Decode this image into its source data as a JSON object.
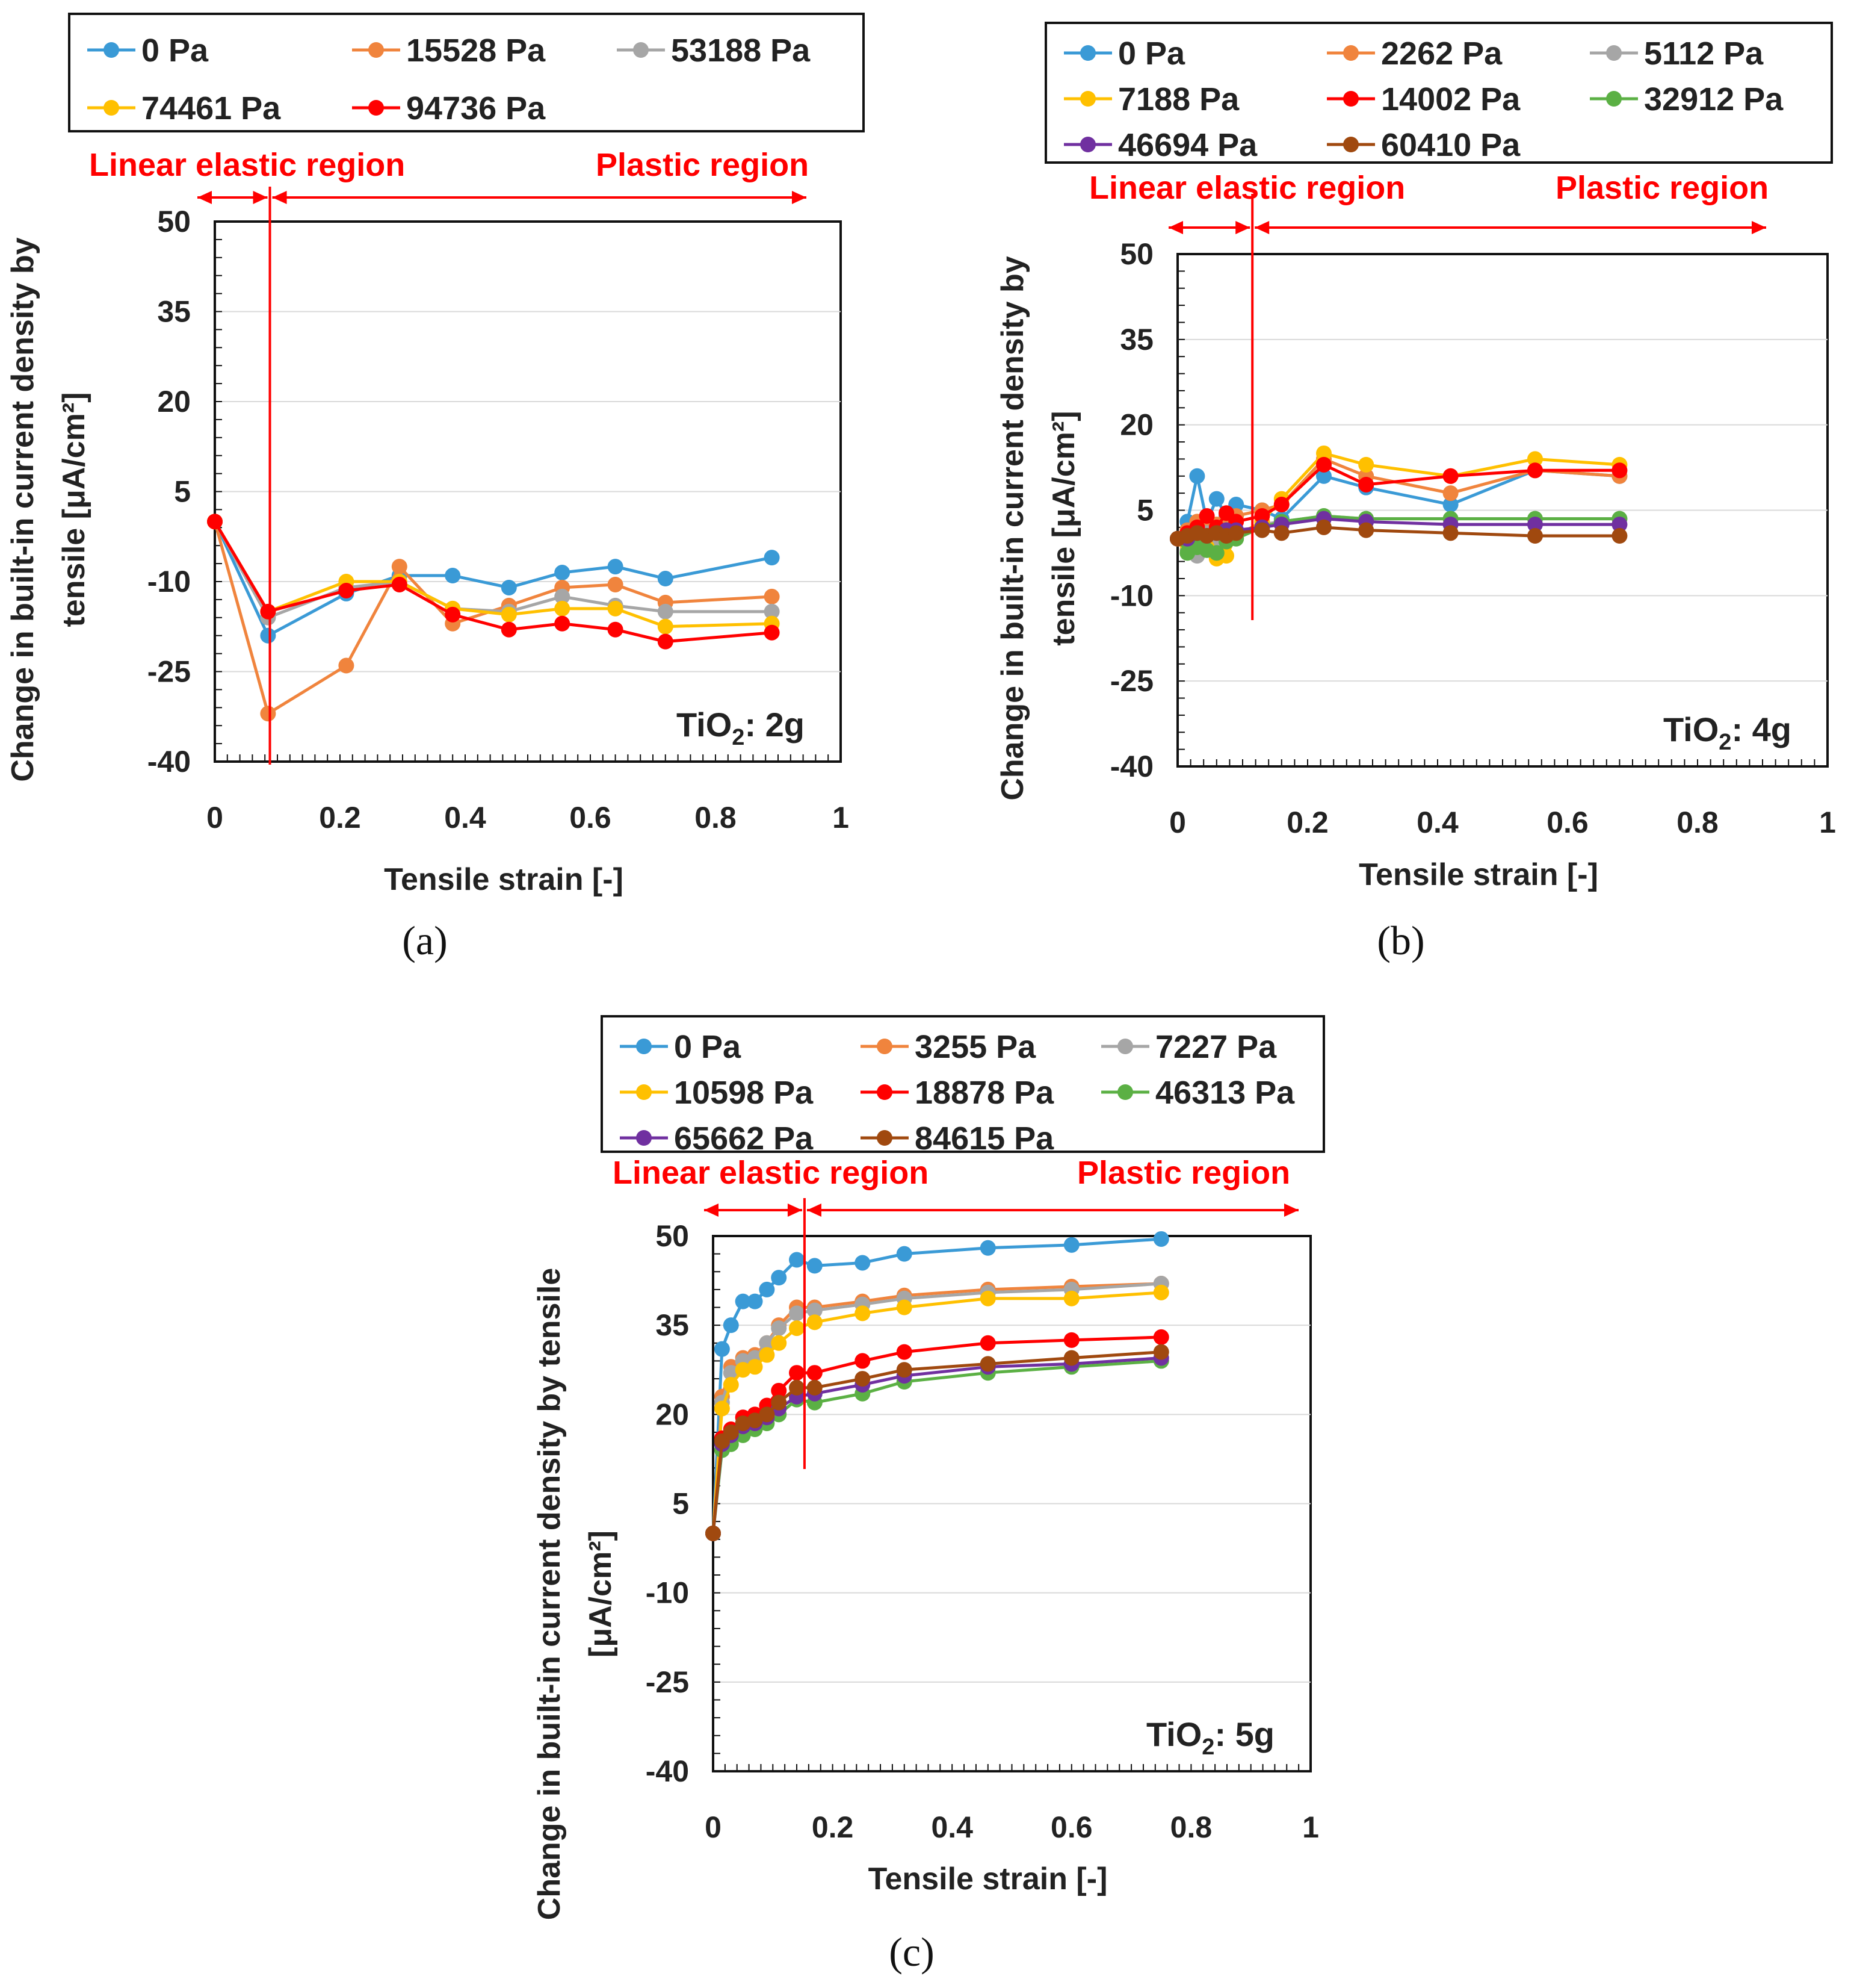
{
  "chart_data": [
    {
      "type": "line",
      "panel_label": "(a)",
      "annotation": {
        "prefix": "TiO",
        "sub": "2",
        "suffix": ": 2g"
      },
      "xlabel": "Tensile strain    [-]",
      "ylabel": [
        "Change in built-in current density by",
        "tensile  [μA/cm²]"
      ],
      "xlim": [
        0,
        1
      ],
      "ylim": [
        -40,
        50
      ],
      "xticks": [
        0,
        0.2,
        0.4,
        0.6,
        0.8,
        1
      ],
      "xtick_labels": [
        "0",
        "0.2",
        "0.4",
        "0.6",
        "0.8",
        "1"
      ],
      "yticks": [
        -40,
        -25,
        -10,
        5,
        20,
        35,
        50
      ],
      "ytick_labels": [
        "-40",
        "-25",
        "-10",
        "5",
        "20",
        "35",
        "50"
      ],
      "grid": true,
      "legend_columns": 3,
      "regions": {
        "elastic_label": "Linear elastic region",
        "plastic_label": "Plastic region",
        "boundary_strain": 0.088
      },
      "series": [
        {
          "name": "0 Pa",
          "color": "#3a9ad6",
          "x": [
            0,
            0.085,
            0.21,
            0.295,
            0.38,
            0.47,
            0.555,
            0.64,
            0.72,
            0.89
          ],
          "y": [
            0,
            -19,
            -12,
            -9,
            -9,
            -11,
            -8.5,
            -7.5,
            -9.5,
            -6
          ]
        },
        {
          "name": "15528 Pa",
          "color": "#f0843d",
          "x": [
            0,
            0.085,
            0.21,
            0.295,
            0.38,
            0.47,
            0.555,
            0.64,
            0.72,
            0.89
          ],
          "y": [
            0,
            -32,
            -24,
            -7.5,
            -17,
            -14,
            -11,
            -10.5,
            -13.5,
            -12.5
          ]
        },
        {
          "name": "53188 Pa",
          "color": "#a6a6a6",
          "x": [
            0,
            0.085,
            0.21,
            0.295,
            0.38,
            0.47,
            0.555,
            0.64,
            0.72,
            0.89
          ],
          "y": [
            0,
            -16,
            -11,
            -10,
            -14.5,
            -15,
            -12.5,
            -14,
            -15,
            -15
          ]
        },
        {
          "name": "74461 Pa",
          "color": "#ffc000",
          "x": [
            0,
            0.085,
            0.21,
            0.295,
            0.38,
            0.47,
            0.555,
            0.64,
            0.72,
            0.89
          ],
          "y": [
            0,
            -15,
            -10,
            -10,
            -14.5,
            -15.5,
            -14.5,
            -14.5,
            -17.5,
            -17
          ]
        },
        {
          "name": "94736 Pa",
          "color": "#ff0000",
          "x": [
            0,
            0.085,
            0.21,
            0.295,
            0.38,
            0.47,
            0.555,
            0.64,
            0.72,
            0.89
          ],
          "y": [
            0,
            -15,
            -11.5,
            -10.5,
            -15.5,
            -18,
            -17,
            -18,
            -20,
            -18.5
          ]
        }
      ]
    },
    {
      "type": "line",
      "panel_label": "(b)",
      "annotation": {
        "prefix": "TiO",
        "sub": "2",
        "suffix": ": 4g"
      },
      "xlabel": "Tensile strain    [-]",
      "ylabel": [
        "Change in built-in current density by",
        "tensile  [μA/cm²]"
      ],
      "xlim": [
        0,
        1
      ],
      "ylim": [
        -40,
        50
      ],
      "xticks": [
        0,
        0.2,
        0.4,
        0.6,
        0.8,
        1
      ],
      "xtick_labels": [
        "0",
        "0.2",
        "0.4",
        "0.6",
        "0.8",
        "1"
      ],
      "yticks": [
        -40,
        -25,
        -10,
        5,
        20,
        35,
        50
      ],
      "ytick_labels": [
        "-40",
        "-25",
        "-10",
        "5",
        "20",
        "35",
        "50"
      ],
      "grid": true,
      "legend_columns": 3,
      "regions": {
        "elastic_label": "Linear elastic region",
        "plastic_label": "Plastic region",
        "boundary_strain": 0.115
      },
      "series": [
        {
          "name": "0 Pa",
          "color": "#3a9ad6",
          "x": [
            0,
            0.015,
            0.03,
            0.045,
            0.06,
            0.075,
            0.09,
            0.13,
            0.16,
            0.225,
            0.29,
            0.42,
            0.55,
            0.68
          ],
          "y": [
            0,
            3,
            11,
            3,
            7,
            4,
            6,
            5,
            3.5,
            11,
            9,
            6,
            12,
            11
          ]
        },
        {
          "name": "2262 Pa",
          "color": "#f0843d",
          "x": [
            0,
            0.015,
            0.03,
            0.045,
            0.06,
            0.075,
            0.09,
            0.13,
            0.16,
            0.225,
            0.29,
            0.42,
            0.55,
            0.68
          ],
          "y": [
            0,
            1.5,
            3,
            2,
            2.5,
            3.5,
            4,
            5,
            6,
            14,
            11,
            8,
            12,
            11
          ]
        },
        {
          "name": "5112 Pa",
          "color": "#a6a6a6",
          "x": [
            0,
            0.015,
            0.03,
            0.045,
            0.06,
            0.075,
            0.09,
            0.13,
            0.16,
            0.225,
            0.29,
            0.42,
            0.55,
            0.68
          ],
          "y": [
            0,
            -2,
            -3,
            1,
            -1,
            1.5,
            0.5,
            2.5,
            3,
            4,
            3.5,
            3.5,
            3.5,
            3.5
          ]
        },
        {
          "name": "7188 Pa",
          "color": "#ffc000",
          "x": [
            0,
            0.015,
            0.03,
            0.045,
            0.06,
            0.075,
            0.09,
            0.13,
            0.16,
            0.225,
            0.29,
            0.42,
            0.55,
            0.68
          ],
          "y": [
            0,
            -1,
            1,
            -1.5,
            -3.5,
            -3,
            0.5,
            3,
            7,
            15,
            13,
            11,
            14,
            13
          ]
        },
        {
          "name": "14002 Pa",
          "color": "#ff0000",
          "x": [
            0,
            0.015,
            0.03,
            0.045,
            0.06,
            0.075,
            0.09,
            0.13,
            0.16,
            0.225,
            0.29,
            0.42,
            0.55,
            0.68
          ],
          "y": [
            0,
            1,
            2,
            4,
            2,
            4.5,
            3,
            4,
            6,
            13,
            9.5,
            11,
            12,
            12
          ]
        },
        {
          "name": "32912 Pa",
          "color": "#5bb044",
          "x": [
            0,
            0.015,
            0.03,
            0.045,
            0.06,
            0.075,
            0.09,
            0.13,
            0.16,
            0.225,
            0.29,
            0.42,
            0.55,
            0.68
          ],
          "y": [
            0,
            -2.5,
            -1.5,
            -2,
            -2.5,
            -0.5,
            0,
            2,
            3,
            4,
            3.5,
            3.5,
            3.5,
            3.5
          ]
        },
        {
          "name": "46694 Pa",
          "color": "#7030a0",
          "x": [
            0,
            0.015,
            0.03,
            0.045,
            0.06,
            0.075,
            0.09,
            0.13,
            0.16,
            0.225,
            0.29,
            0.42,
            0.55,
            0.68
          ],
          "y": [
            0,
            0,
            1,
            0.5,
            1,
            1.5,
            1.5,
            2,
            2.5,
            3.5,
            3,
            2.5,
            2.5,
            2.5
          ]
        },
        {
          "name": "60410 Pa",
          "color": "#a0490f",
          "x": [
            0,
            0.015,
            0.03,
            0.045,
            0.06,
            0.075,
            0.09,
            0.13,
            0.16,
            0.225,
            0.29,
            0.42,
            0.55,
            0.68
          ],
          "y": [
            0,
            0.5,
            1,
            0.5,
            1,
            0.5,
            1,
            1.5,
            1,
            2,
            1.5,
            1,
            0.5,
            0.5
          ]
        }
      ]
    },
    {
      "type": "line",
      "panel_label": "(c)",
      "annotation": {
        "prefix": "TiO",
        "sub": "2",
        "suffix": ": 5g"
      },
      "xlabel": "Tensile strain    [-]",
      "ylabel": [
        "Change in built-in current density by tensile",
        "[μA/cm²]"
      ],
      "xlim": [
        0,
        1
      ],
      "ylim": [
        -40,
        50
      ],
      "xticks": [
        0,
        0.2,
        0.4,
        0.6,
        0.8,
        1
      ],
      "xtick_labels": [
        "0",
        "0.2",
        "0.4",
        "0.6",
        "0.8",
        "1"
      ],
      "yticks": [
        -40,
        -25,
        -10,
        5,
        20,
        35,
        50
      ],
      "ytick_labels": [
        "-40",
        "-25",
        "-10",
        "5",
        "20",
        "35",
        "50"
      ],
      "grid": true,
      "legend_columns": 3,
      "regions": {
        "elastic_label": "Linear elastic region",
        "plastic_label": "Plastic region",
        "boundary_strain": 0.153
      },
      "series": [
        {
          "name": "0 Pa",
          "color": "#3a9ad6",
          "x": [
            0,
            0.015,
            0.03,
            0.05,
            0.07,
            0.09,
            0.11,
            0.14,
            0.17,
            0.25,
            0.32,
            0.46,
            0.6,
            0.75
          ],
          "y": [
            0,
            31,
            35,
            39,
            39,
            41,
            43,
            46,
            45,
            45.5,
            47,
            48,
            48.5,
            49.5
          ]
        },
        {
          "name": "3255 Pa",
          "color": "#f0843d",
          "x": [
            0,
            0.015,
            0.03,
            0.05,
            0.07,
            0.09,
            0.11,
            0.14,
            0.17,
            0.25,
            0.32,
            0.46,
            0.6,
            0.75
          ],
          "y": [
            0,
            23,
            28,
            29.5,
            30,
            32,
            35,
            38,
            38,
            39,
            40,
            41,
            41.5,
            42
          ]
        },
        {
          "name": "7227 Pa",
          "color": "#a6a6a6",
          "x": [
            0,
            0.015,
            0.03,
            0.05,
            0.07,
            0.09,
            0.11,
            0.14,
            0.17,
            0.25,
            0.32,
            0.46,
            0.6,
            0.75
          ],
          "y": [
            0,
            22,
            27,
            29,
            29.5,
            32,
            34.5,
            37,
            37.5,
            38.5,
            39.5,
            40.5,
            41,
            42
          ]
        },
        {
          "name": "10598 Pa",
          "color": "#ffc000",
          "x": [
            0,
            0.015,
            0.03,
            0.05,
            0.07,
            0.09,
            0.11,
            0.14,
            0.17,
            0.25,
            0.32,
            0.46,
            0.6,
            0.75
          ],
          "y": [
            0,
            21,
            25,
            27.5,
            28,
            30,
            32,
            34.5,
            35.5,
            37,
            38,
            39.5,
            39.5,
            40.5
          ]
        },
        {
          "name": "18878 Pa",
          "color": "#ff0000",
          "x": [
            0,
            0.015,
            0.03,
            0.05,
            0.07,
            0.09,
            0.11,
            0.14,
            0.17,
            0.25,
            0.32,
            0.46,
            0.6,
            0.75
          ],
          "y": [
            0,
            16,
            17.5,
            19.5,
            20,
            21.5,
            24,
            27,
            27,
            29,
            30.5,
            32,
            32.5,
            33
          ]
        },
        {
          "name": "46313 Pa",
          "color": "#5bb044",
          "x": [
            0,
            0.015,
            0.03,
            0.05,
            0.07,
            0.09,
            0.11,
            0.14,
            0.17,
            0.25,
            0.32,
            0.46,
            0.6,
            0.75
          ],
          "y": [
            0,
            14,
            15,
            16.5,
            17.5,
            18.5,
            20,
            22.5,
            22,
            23.5,
            25.5,
            27,
            28,
            29
          ]
        },
        {
          "name": "65662 Pa",
          "color": "#7030a0",
          "x": [
            0,
            0.015,
            0.03,
            0.05,
            0.07,
            0.09,
            0.11,
            0.14,
            0.17,
            0.25,
            0.32,
            0.46,
            0.6,
            0.75
          ],
          "y": [
            0,
            15,
            16.5,
            18,
            18.5,
            19.5,
            21,
            23,
            23.5,
            25,
            26.5,
            28,
            28.5,
            29.5
          ]
        },
        {
          "name": "84615 Pa",
          "color": "#a0490f",
          "x": [
            0,
            0.015,
            0.03,
            0.05,
            0.07,
            0.09,
            0.11,
            0.14,
            0.17,
            0.25,
            0.32,
            0.46,
            0.6,
            0.75
          ],
          "y": [
            0,
            15.5,
            17,
            18.5,
            19,
            20,
            22,
            24.5,
            24.5,
            26,
            27.5,
            28.5,
            29.5,
            30.5
          ]
        }
      ]
    }
  ]
}
